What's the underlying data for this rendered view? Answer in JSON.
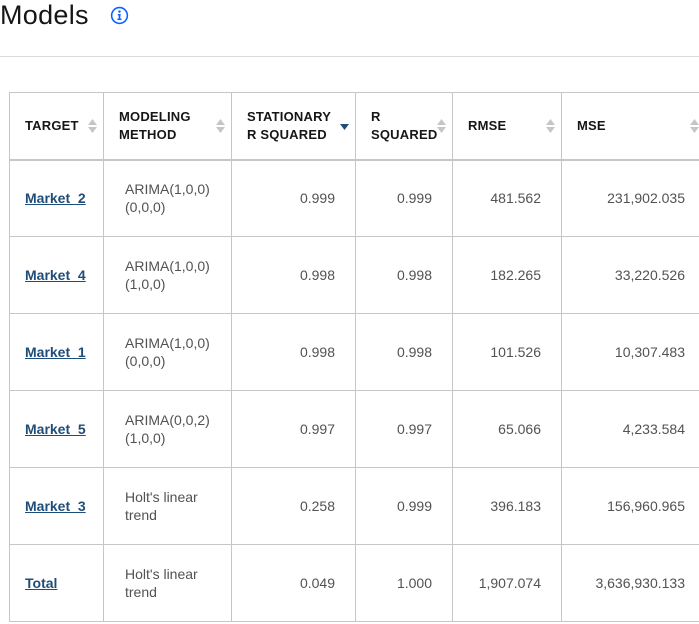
{
  "page": {
    "title": "Models",
    "info_icon": "info-circle-icon"
  },
  "table": {
    "columns": [
      {
        "label": "TARGET",
        "sort": "unsorted"
      },
      {
        "label": "MODELING\nMETHOD",
        "sort": "unsorted"
      },
      {
        "label": "STATIONARY\nR SQUARED",
        "sort": "descending"
      },
      {
        "label": "R\nSQUARED",
        "sort": "unsorted"
      },
      {
        "label": "RMSE",
        "sort": "unsorted"
      },
      {
        "label": "MSE",
        "sort": "unsorted"
      }
    ],
    "rows": [
      {
        "target": "Market_2",
        "method": "ARIMA(1,0,0)\n(0,0,0)",
        "stationary_r2": "0.999",
        "r2": "0.999",
        "rmse": "481.562",
        "mse": "231,902.035"
      },
      {
        "target": "Market_4",
        "method": "ARIMA(1,0,0)\n(1,0,0)",
        "stationary_r2": "0.998",
        "r2": "0.998",
        "rmse": "182.265",
        "mse": "33,220.526"
      },
      {
        "target": "Market_1",
        "method": "ARIMA(1,0,0)\n(0,0,0)",
        "stationary_r2": "0.998",
        "r2": "0.998",
        "rmse": "101.526",
        "mse": "10,307.483"
      },
      {
        "target": "Market_5",
        "method": "ARIMA(0,0,2)\n(1,0,0)",
        "stationary_r2": "0.997",
        "r2": "0.997",
        "rmse": "65.066",
        "mse": "4,233.584"
      },
      {
        "target": "Market_3",
        "method": "Holt's linear\ntrend",
        "stationary_r2": "0.258",
        "r2": "0.999",
        "rmse": "396.183",
        "mse": "156,960.965"
      },
      {
        "target": "Total",
        "method": "Holt's linear\ntrend",
        "stationary_r2": "0.049",
        "r2": "1.000",
        "rmse": "1,907.074",
        "mse": "3,636,930.133"
      }
    ]
  },
  "colors": {
    "link": "#1f4d7a",
    "sort_active": "#1f4d7a",
    "sort_inactive": "#c6c6c6",
    "border": "#c6c6c6",
    "info_icon": "#0f62fe"
  }
}
